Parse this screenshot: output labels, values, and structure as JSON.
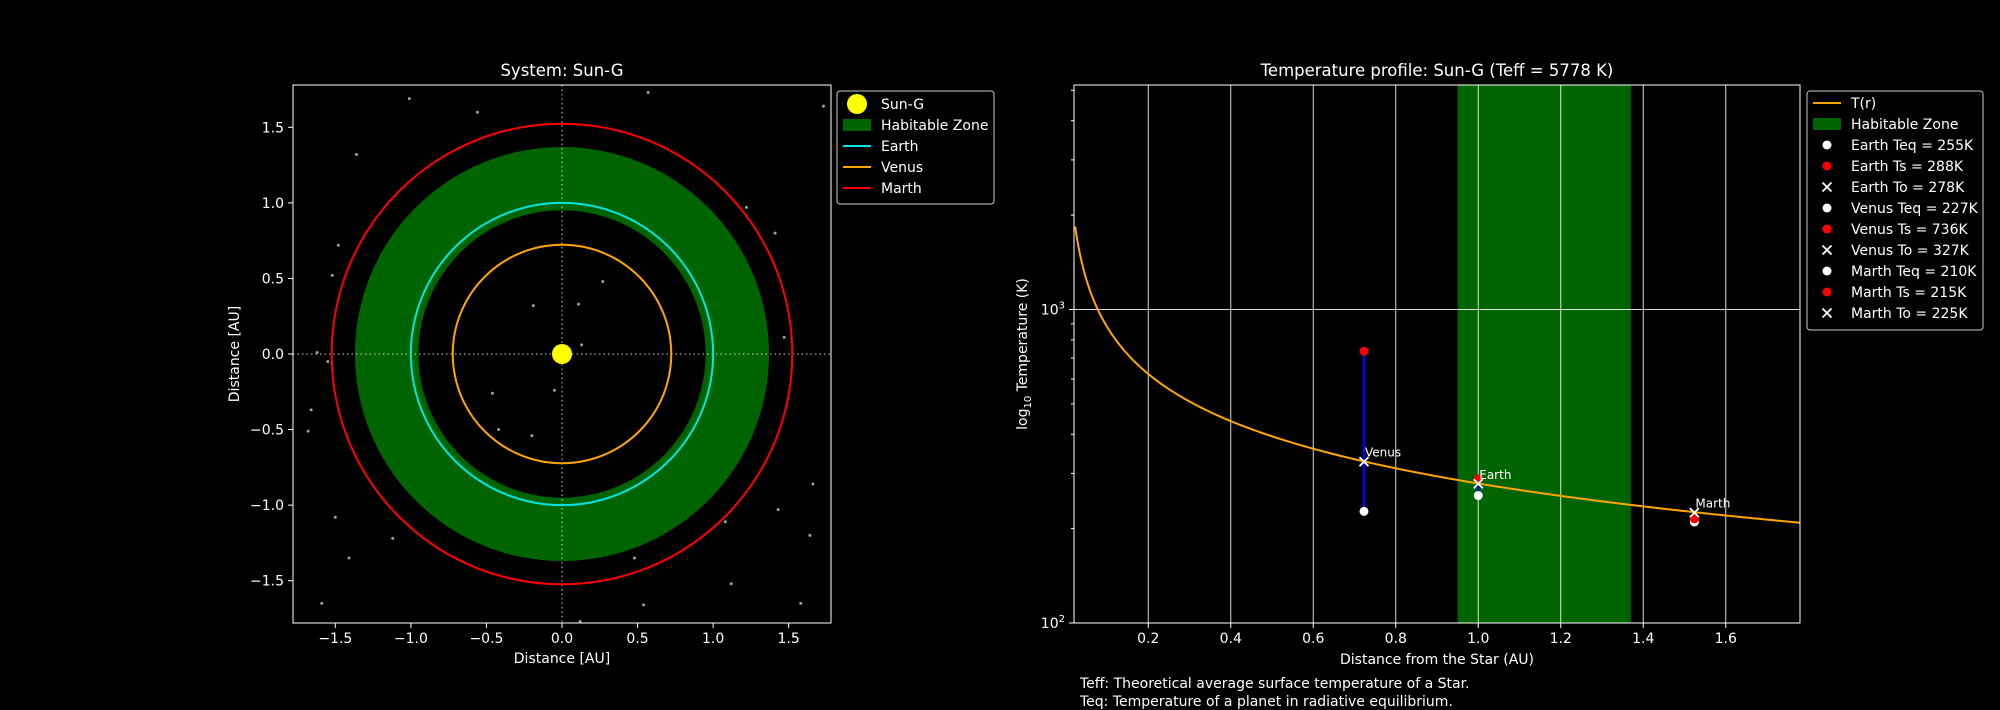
{
  "chart_data": [
    {
      "type": "scatter",
      "title": "System: Sun-G",
      "xlabel": "Distance [AU]",
      "ylabel": "Distance [AU]",
      "xlim": [
        -1.78,
        1.78
      ],
      "ylim": [
        -1.78,
        1.78
      ],
      "xticks": [
        -1.5,
        -1.0,
        -0.5,
        0.0,
        0.5,
        1.0,
        1.5
      ],
      "yticks": [
        -1.5,
        -1.0,
        -0.5,
        0.0,
        0.5,
        1.0,
        1.5
      ],
      "xtick_labels": [
        "−1.5",
        "−1.0",
        "−0.5",
        "0.0",
        "0.5",
        "1.0",
        "1.5"
      ],
      "ytick_labels": [
        "−1.5",
        "−1.0",
        "−0.5",
        "0.0",
        "0.5",
        "1.0",
        "1.5"
      ],
      "grid": false,
      "legend_position": "outside-top-right",
      "star": {
        "name": "Sun-G",
        "x": 0,
        "y": 0,
        "color": "#ffff00"
      },
      "habitable_zone": {
        "label": "Habitable Zone",
        "inner_au": 0.95,
        "outer_au": 1.37,
        "color": "#006400"
      },
      "orbits": [
        {
          "name": "Earth",
          "radius_au": 1.0,
          "color": "#00e5e5"
        },
        {
          "name": "Venus",
          "radius_au": 0.723,
          "color": "#ffa500"
        },
        {
          "name": "Marth",
          "radius_au": 1.524,
          "color": "#ff0000"
        }
      ],
      "background_stars": [
        [
          0.57,
          1.73
        ],
        [
          1.73,
          1.64
        ],
        [
          -1.01,
          1.69
        ],
        [
          -1.36,
          1.32
        ],
        [
          -0.56,
          1.6
        ],
        [
          0.38,
          1.04
        ],
        [
          0.65,
          1.09
        ],
        [
          1.22,
          0.97
        ],
        [
          1.41,
          0.8
        ],
        [
          1.0,
          0.89
        ],
        [
          -1.48,
          0.72
        ],
        [
          -1.52,
          0.52
        ],
        [
          -1.27,
          0.45
        ],
        [
          0.27,
          0.48
        ],
        [
          -0.19,
          0.32
        ],
        [
          0.11,
          0.33
        ],
        [
          1.47,
          0.11
        ],
        [
          0.13,
          0.06
        ],
        [
          -1.62,
          0.01
        ],
        [
          -0.05,
          -0.24
        ],
        [
          -0.46,
          -0.26
        ],
        [
          -1.07,
          -0.21
        ],
        [
          -1.55,
          -0.05
        ],
        [
          -1.66,
          -0.37
        ],
        [
          -1.68,
          -0.51
        ],
        [
          -0.42,
          -0.5
        ],
        [
          -0.2,
          -0.54
        ],
        [
          1.16,
          -0.35
        ],
        [
          1.66,
          -0.86
        ],
        [
          1.43,
          -1.03
        ],
        [
          1.08,
          -1.11
        ],
        [
          0.28,
          -1.05
        ],
        [
          -1.5,
          -1.08
        ],
        [
          -1.12,
          -1.22
        ],
        [
          -1.41,
          -1.35
        ],
        [
          0.48,
          -1.35
        ],
        [
          1.12,
          -1.52
        ],
        [
          1.58,
          -1.65
        ],
        [
          1.64,
          -1.2
        ],
        [
          -1.59,
          -1.65
        ],
        [
          0.54,
          -1.66
        ],
        [
          0.12,
          -1.77
        ]
      ]
    },
    {
      "type": "line",
      "title": "Temperature profile: Sun-G (Teff = 5778 K)",
      "xlabel": "Distance from the Star (AU)",
      "ylabel_prefix": "log",
      "ylabel_sub": "10",
      "ylabel_suffix": " Temperature (K)",
      "xlim": [
        0.02,
        1.78
      ],
      "ylim": [
        100,
        5200
      ],
      "y_scale": "log",
      "xticks": [
        0.2,
        0.4,
        0.6,
        0.8,
        1.0,
        1.2,
        1.4,
        1.6
      ],
      "xtick_labels": [
        "0.2",
        "0.4",
        "0.6",
        "0.8",
        "1.0",
        "1.2",
        "1.4",
        "1.6"
      ],
      "yticks": [
        100,
        1000
      ],
      "ytick_base": "10",
      "ytick_exponents": [
        "2",
        "3"
      ],
      "grid": true,
      "legend_position": "outside-top-right",
      "curve": {
        "name": "T(r)",
        "color": "#ffa500",
        "formula_coefficient_K": 278.6,
        "formula_exponent": -0.5
      },
      "habitable_zone": {
        "label": "Habitable Zone",
        "x_start": 0.95,
        "x_end": 1.37,
        "color": "#006400"
      },
      "planets": [
        {
          "name": "Earth",
          "a_au": 1.0,
          "teq": 255,
          "ts": 288,
          "to": 278,
          "teq_label": "Earth Teq = 255K",
          "ts_label": "Earth Ts = 288K",
          "to_label": "Earth To = 278K"
        },
        {
          "name": "Venus",
          "a_au": 0.723,
          "teq": 227,
          "ts": 736,
          "to": 327,
          "teq_label": "Venus Teq = 227K",
          "ts_label": "Venus Ts = 736K",
          "to_label": "Venus To = 327K"
        },
        {
          "name": "Marth",
          "a_au": 1.524,
          "teq": 210,
          "ts": 215,
          "to": 225,
          "teq_label": "Marth Teq = 210K",
          "ts_label": "Marth Ts = 215K",
          "to_label": "Marth To = 225K"
        }
      ],
      "marker_colors": {
        "teq": "#ffffff",
        "ts": "#ff0000",
        "to": "#ffffff",
        "range_line": "#0000ff"
      }
    }
  ],
  "footnotes": [
    "Teff: Theoretical average surface temperature of a Star.",
    "Teq: Temperature of a planet in radiative equilibrium."
  ]
}
